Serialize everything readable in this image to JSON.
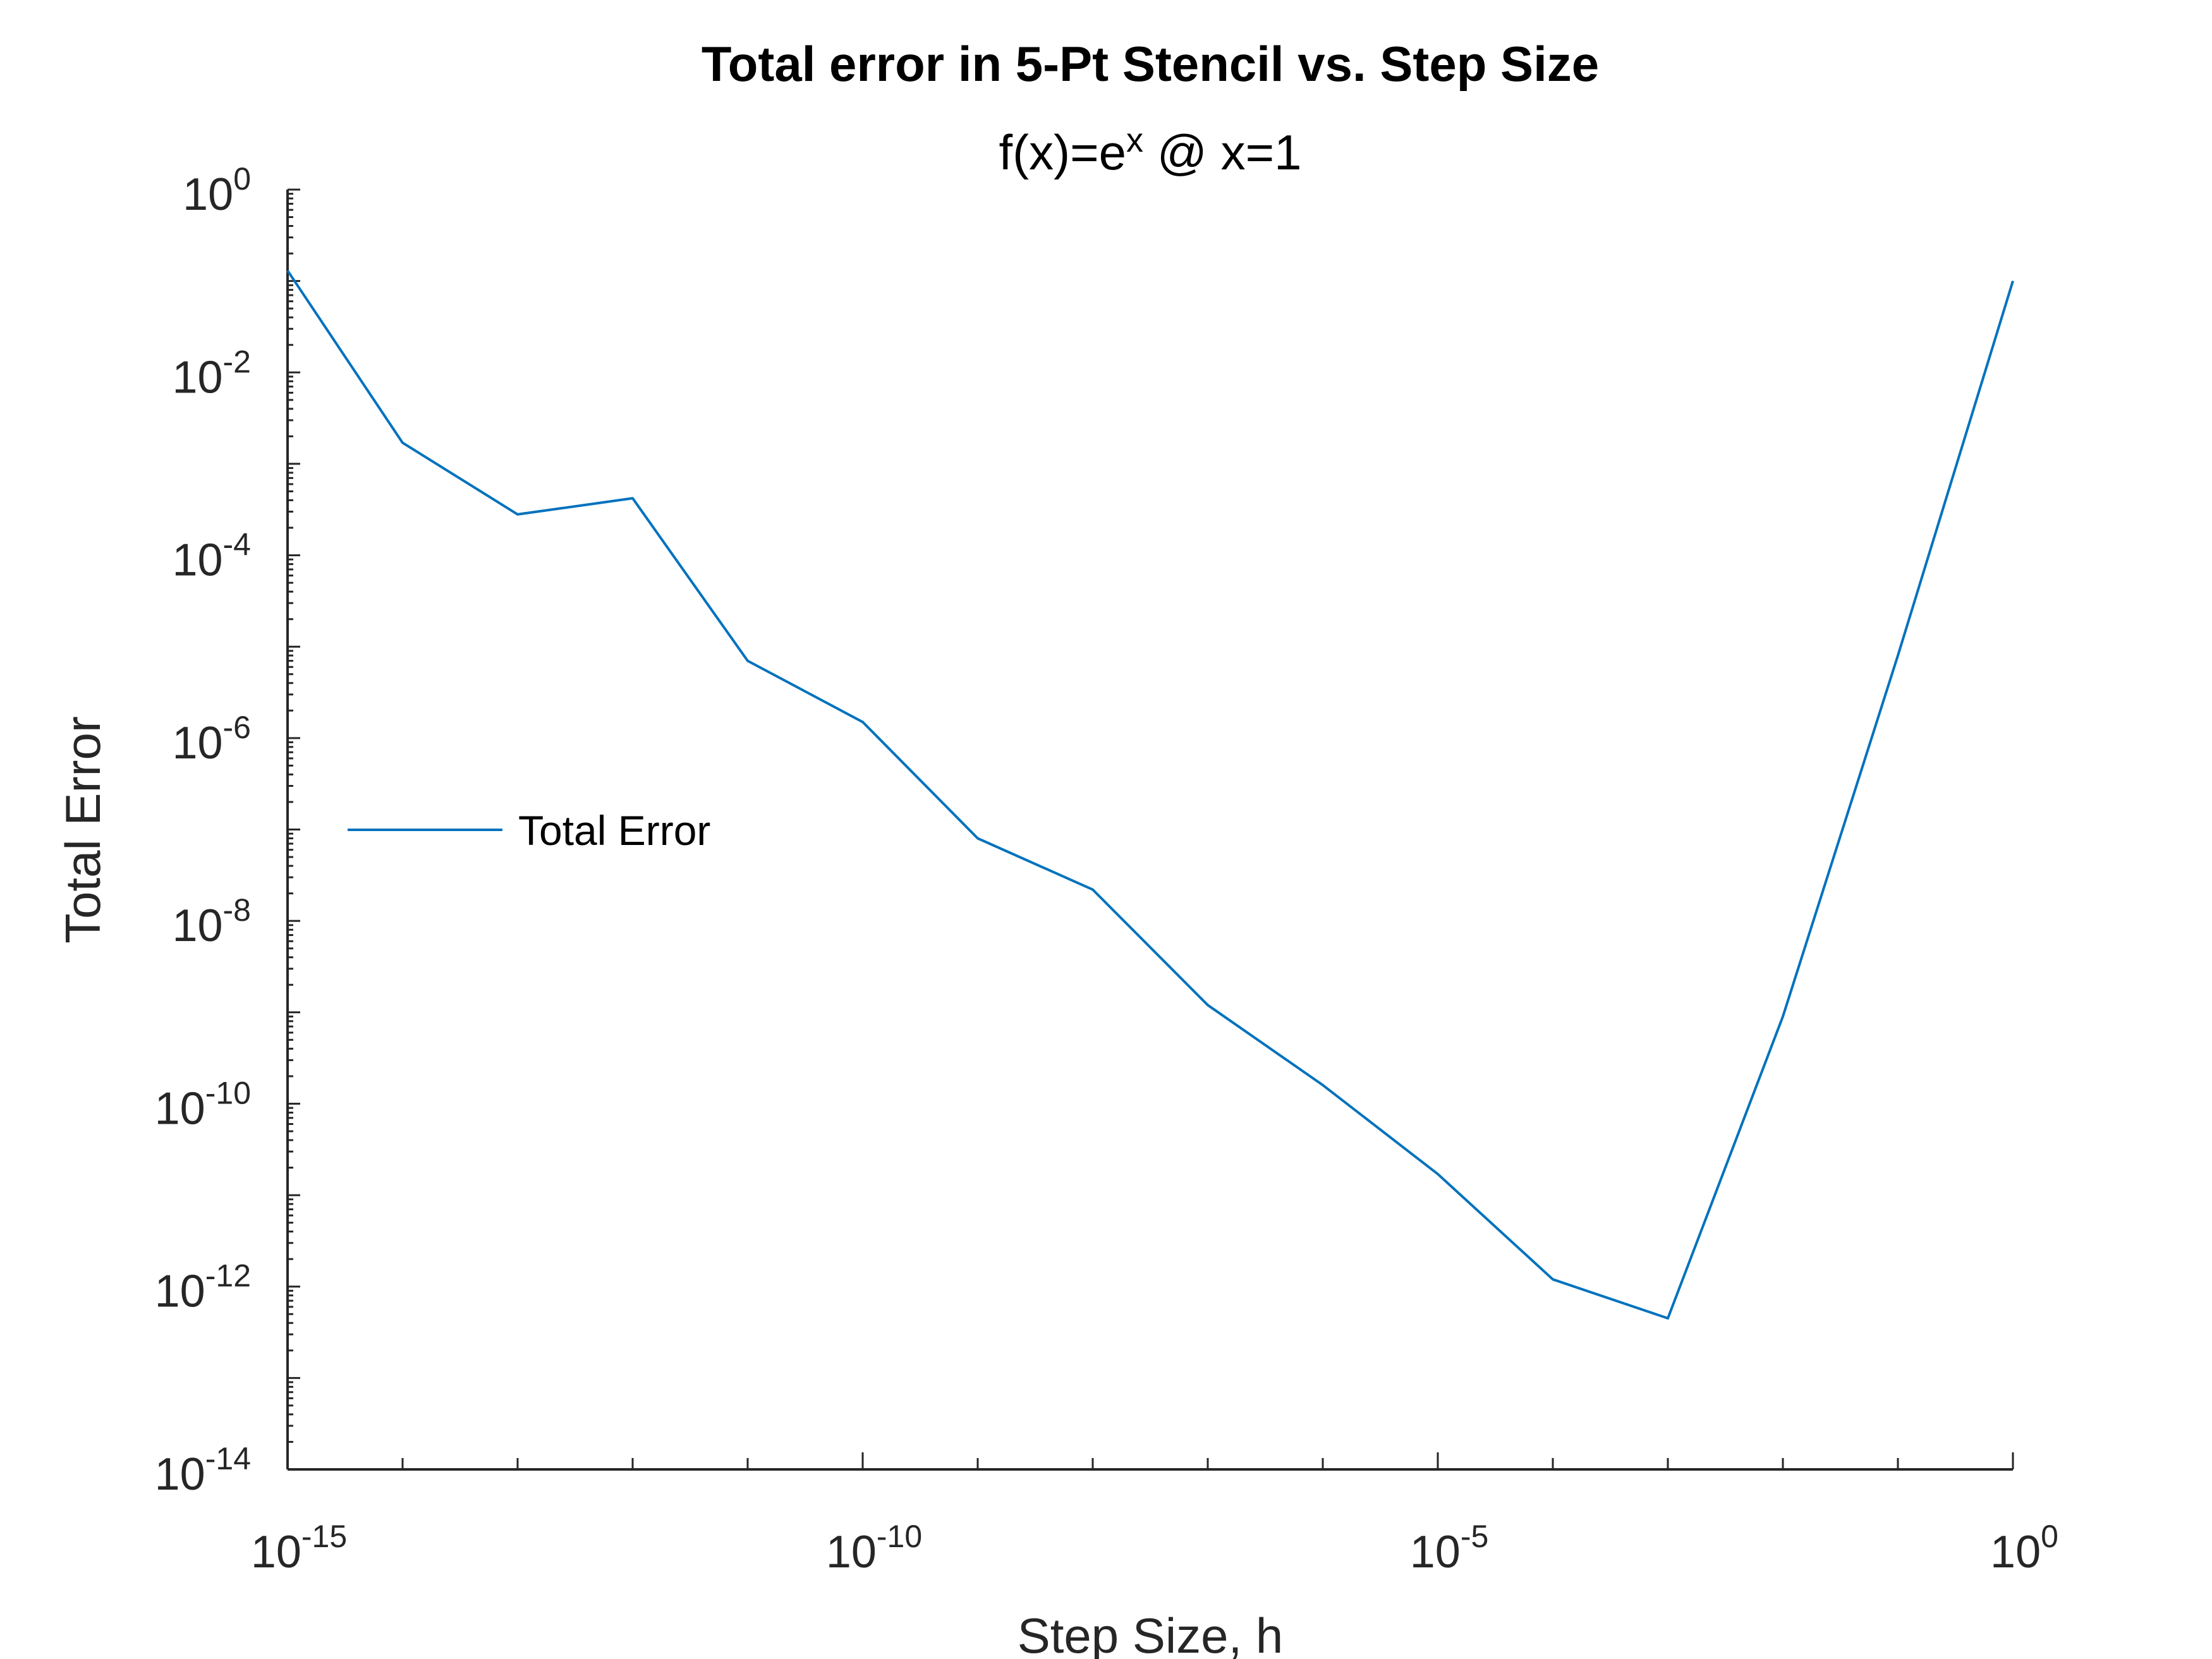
{
  "chart_data": {
    "type": "line",
    "title": "Total error in 5-Pt Stencil vs. Step Size",
    "subtitle": {
      "base": "f(x)=e",
      "superscript": "x",
      "rest": " @ x=1"
    },
    "xlabel": "Step Size, h",
    "ylabel": "Total Error",
    "xscale": "log",
    "yscale": "log",
    "xlim": [
      1e-15,
      1
    ],
    "ylim": [
      1e-14,
      1
    ],
    "xticks": [
      {
        "base": "10",
        "exp": "-15",
        "value": 1e-15
      },
      {
        "base": "10",
        "exp": "-10",
        "value": 1e-10
      },
      {
        "base": "10",
        "exp": "-5",
        "value": 1e-05
      },
      {
        "base": "10",
        "exp": "0",
        "value": 1
      }
    ],
    "yticks": [
      {
        "base": "10",
        "exp": "0",
        "value": 1
      },
      {
        "base": "10",
        "exp": "-2",
        "value": 0.01
      },
      {
        "base": "10",
        "exp": "-4",
        "value": 0.0001
      },
      {
        "base": "10",
        "exp": "-6",
        "value": 1e-06
      },
      {
        "base": "10",
        "exp": "-8",
        "value": 1e-08
      },
      {
        "base": "10",
        "exp": "-10",
        "value": 1e-10
      },
      {
        "base": "10",
        "exp": "-12",
        "value": 1e-12
      },
      {
        "base": "10",
        "exp": "-14",
        "value": 1e-14
      }
    ],
    "grid": false,
    "legend_position": "left",
    "series": [
      {
        "name": "Total Error",
        "color": "#0072BD",
        "x": [
          1e-15,
          1e-14,
          1e-13,
          1e-12,
          1e-11,
          1e-10,
          1e-09,
          1e-08,
          1e-07,
          1e-06,
          1e-05,
          0.0001,
          0.001,
          0.01,
          0.1,
          1
        ],
        "y": [
          0.13,
          0.0017,
          0.00028,
          0.00042,
          7e-06,
          1.5e-06,
          8e-08,
          2.2e-08,
          1.2e-09,
          1.6e-10,
          1.7e-11,
          1.2e-12,
          4.5e-13,
          9e-10,
          8e-06,
          0.1
        ]
      }
    ]
  }
}
